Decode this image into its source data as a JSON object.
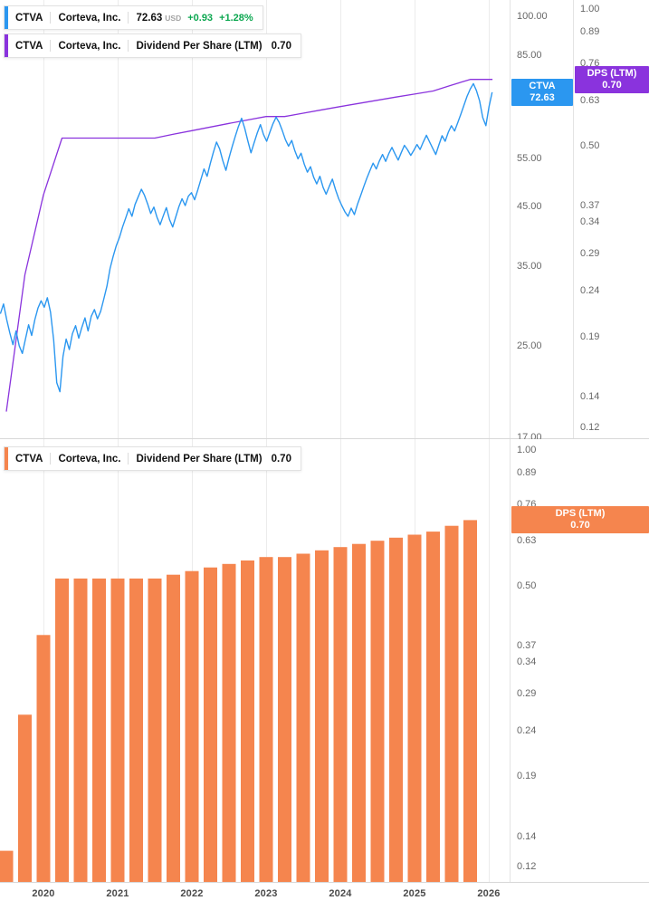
{
  "panels": {
    "price": {
      "legend_price": {
        "ticker": "CTVA",
        "company": "Corteva, Inc.",
        "price": "72.63",
        "currency": "USD",
        "change": "+0.93",
        "change_pct": "+1.28%"
      },
      "legend_dps": {
        "ticker": "CTVA",
        "company": "Corteva, Inc.",
        "metric": "Dividend Per Share (LTM)",
        "value": "0.70"
      },
      "price_axis": {
        "ticks": [
          "100.00",
          "85.00",
          "55.00",
          "45.00",
          "35.00",
          "25.00",
          "17.00"
        ],
        "badge": {
          "line1": "CTVA",
          "line2": "72.63"
        }
      },
      "dps_axis": {
        "ticks": [
          "1.00",
          "0.89",
          "0.76",
          "0.63",
          "0.50",
          "0.37",
          "0.34",
          "0.29",
          "0.24",
          "0.19",
          "0.14",
          "0.12"
        ],
        "badge": {
          "line1": "DPS (LTM)",
          "line2": "0.70"
        }
      }
    },
    "dividend": {
      "legend": {
        "ticker": "CTVA",
        "company": "Corteva, Inc.",
        "metric": "Dividend Per Share (LTM)",
        "value": "0.70"
      },
      "dps_axis": {
        "ticks": [
          "1.00",
          "0.89",
          "0.76",
          "0.63",
          "0.50",
          "0.37",
          "0.34",
          "0.29",
          "0.24",
          "0.19",
          "0.14",
          "0.12"
        ],
        "badge": {
          "line1": "DPS (LTM)",
          "line2": "0.70"
        }
      }
    }
  },
  "x_axis": {
    "years": [
      "2020",
      "2021",
      "2022",
      "2023",
      "2024",
      "2025",
      "2026"
    ]
  },
  "colors": {
    "price": "#2b97f0",
    "dps_line": "#8a33dd",
    "dps_bar": "#f5854e",
    "change_pos": "#0ca750"
  },
  "chart_data": [
    {
      "type": "line",
      "name": "CTVA share price",
      "unit": "USD",
      "yscale": "log",
      "ylim": [
        17,
        100
      ],
      "x_start": 2019.42,
      "x_step": 0.0422,
      "values": [
        28.6,
        29.8,
        27.9,
        26.4,
        25.1,
        26.6,
        25.0,
        24.2,
        25.7,
        27.3,
        26.1,
        27.9,
        29.3,
        30.2,
        29.4,
        30.6,
        28.8,
        25.6,
        21.4,
        20.6,
        23.9,
        25.7,
        24.6,
        26.3,
        27.2,
        25.8,
        27.0,
        28.1,
        26.6,
        28.3,
        29.1,
        28.0,
        28.9,
        30.4,
        32.1,
        34.6,
        36.4,
        38.1,
        39.4,
        41.2,
        42.8,
        44.5,
        43.1,
        45.3,
        46.8,
        48.3,
        47.1,
        45.4,
        43.6,
        44.8,
        42.9,
        41.6,
        43.2,
        44.7,
        42.5,
        41.2,
        43.0,
        44.9,
        46.4,
        45.1,
        46.9,
        47.6,
        46.2,
        48.1,
        50.3,
        52.6,
        51.0,
        53.8,
        56.4,
        58.9,
        57.2,
        54.5,
        52.3,
        55.1,
        57.8,
        60.4,
        62.9,
        65.1,
        62.4,
        59.2,
        56.3,
        58.7,
        61.2,
        63.4,
        60.8,
        59.1,
        61.3,
        63.6,
        65.4,
        64.0,
        61.8,
        59.5,
        57.9,
        59.3,
        56.8,
        54.9,
        56.2,
        53.7,
        51.9,
        53.1,
        50.8,
        49.4,
        51.0,
        48.7,
        47.3,
        48.9,
        50.4,
        48.2,
        46.4,
        45.1,
        43.9,
        43.1,
        44.6,
        43.4,
        45.3,
        47.0,
        48.8,
        50.6,
        52.3,
        53.9,
        52.6,
        54.4,
        55.9,
        54.3,
        56.1,
        57.6,
        56.0,
        54.6,
        56.4,
        58.1,
        57.0,
        55.7,
        56.9,
        58.3,
        57.1,
        58.9,
        60.6,
        59.0,
        57.4,
        55.9,
        58.2,
        60.5,
        59.1,
        61.4,
        63.1,
        61.7,
        63.9,
        66.2,
        68.8,
        71.4,
        73.6,
        75.3,
        73.1,
        70.0,
        65.3,
        63.1,
        68.4,
        72.63
      ]
    },
    {
      "type": "line",
      "name": "Dividend Per Share (LTM)",
      "unit": "USD",
      "yscale": "log",
      "ylim": [
        0.12,
        1.0
      ],
      "x_start": 2019.5,
      "x_step": 0.25,
      "values": [
        0.13,
        0.26,
        0.39,
        0.52,
        0.52,
        0.52,
        0.52,
        0.52,
        0.52,
        0.53,
        0.54,
        0.55,
        0.56,
        0.57,
        0.58,
        0.58,
        0.59,
        0.6,
        0.61,
        0.62,
        0.63,
        0.64,
        0.65,
        0.66,
        0.68,
        0.7
      ]
    },
    {
      "type": "bar",
      "name": "Dividend Per Share (LTM)",
      "unit": "USD",
      "yscale": "log",
      "ylim": [
        0.12,
        1.0
      ],
      "x_start": 2019.5,
      "x_step": 0.25,
      "categories": [
        "Q3 2019",
        "Q4 2019",
        "Q1 2020",
        "Q2 2020",
        "Q3 2020",
        "Q4 2020",
        "Q1 2021",
        "Q2 2021",
        "Q3 2021",
        "Q4 2021",
        "Q1 2022",
        "Q2 2022",
        "Q3 2022",
        "Q4 2022",
        "Q1 2023",
        "Q2 2023",
        "Q3 2023",
        "Q4 2023",
        "Q1 2024",
        "Q2 2024",
        "Q3 2024",
        "Q4 2024",
        "Q1 2025",
        "Q2 2025",
        "Q3 2025",
        "Q4 2025"
      ],
      "values": [
        0.13,
        0.26,
        0.39,
        0.52,
        0.52,
        0.52,
        0.52,
        0.52,
        0.52,
        0.53,
        0.54,
        0.55,
        0.56,
        0.57,
        0.58,
        0.58,
        0.59,
        0.6,
        0.61,
        0.62,
        0.63,
        0.64,
        0.65,
        0.66,
        0.68,
        0.7
      ]
    }
  ]
}
